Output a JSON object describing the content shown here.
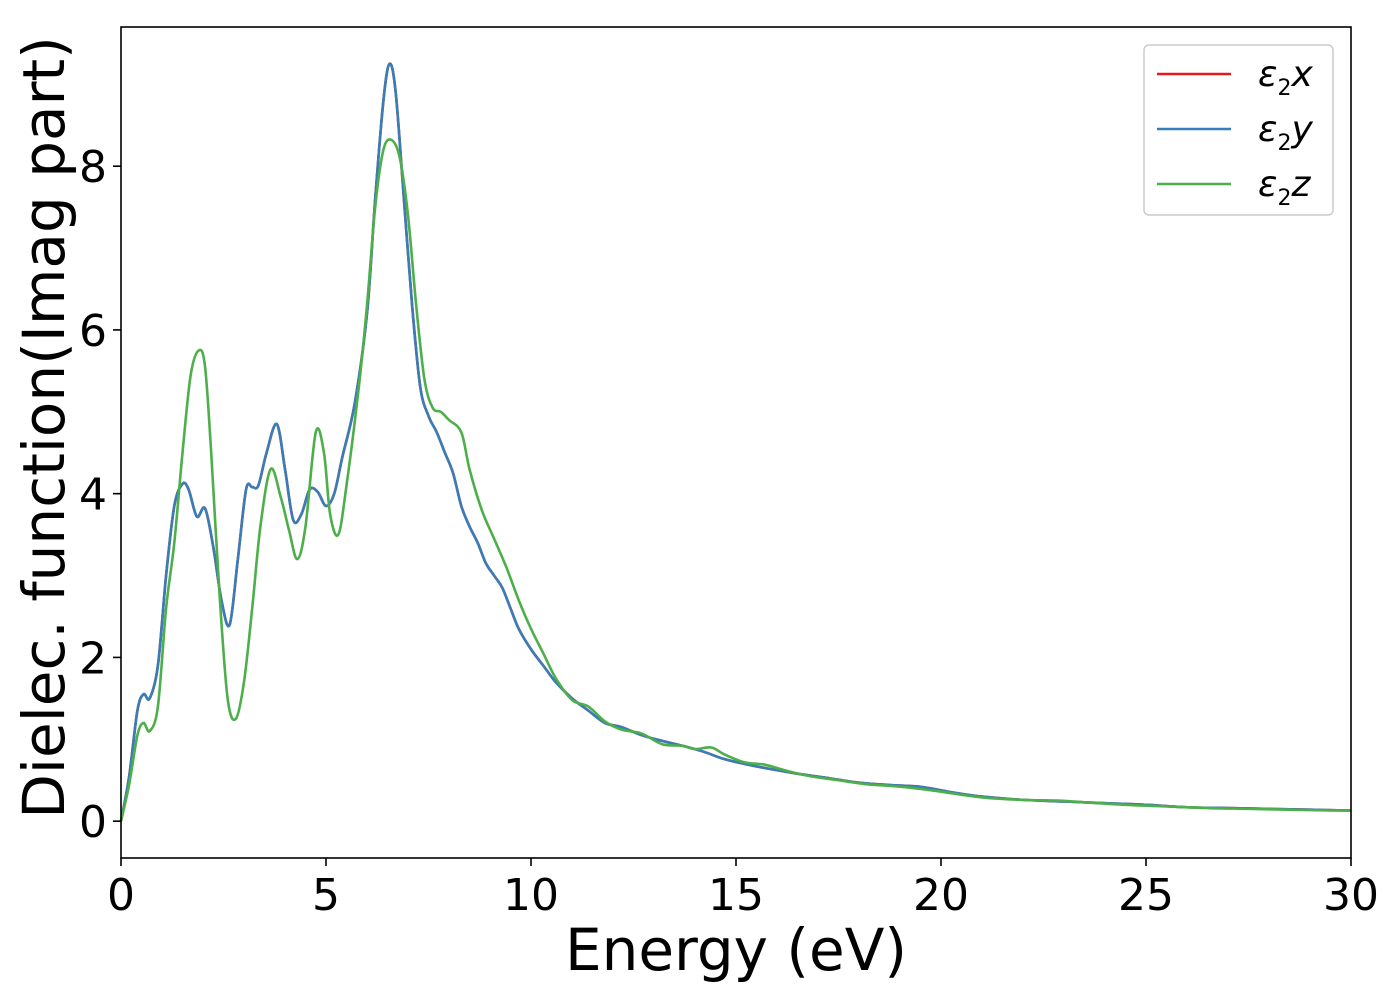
{
  "chart_data": {
    "type": "line",
    "xlabel": "Energy (eV)",
    "ylabel": "Dielec. function(Imag part)",
    "xlim": [
      0,
      30
    ],
    "ylim": [
      -0.45,
      9.7
    ],
    "x_ticks": [
      "0",
      "5",
      "10",
      "15",
      "20",
      "25",
      "30"
    ],
    "y_ticks": [
      "0",
      "2",
      "4",
      "6",
      "8"
    ],
    "grid": false,
    "legend_position": "top-right",
    "series": [
      {
        "name": "ε₂x",
        "legend_base": "ε",
        "legend_sub": "2",
        "legend_var": "x",
        "color": "#e41a1c",
        "x": [
          0,
          0.2,
          0.4,
          0.55,
          0.7,
          0.9,
          1.1,
          1.3,
          1.5,
          1.65,
          1.85,
          2.05,
          2.25,
          2.45,
          2.65,
          2.85,
          3.05,
          3.2,
          3.35,
          3.55,
          3.8,
          4.0,
          4.2,
          4.4,
          4.6,
          4.8,
          5.0,
          5.2,
          5.4,
          5.7,
          6.0,
          6.2,
          6.4,
          6.55,
          6.7,
          6.9,
          7.1,
          7.3,
          7.5,
          7.7,
          7.9,
          8.1,
          8.3,
          8.5,
          8.7,
          8.9,
          9.1,
          9.3,
          9.5,
          9.7,
          10.0,
          10.3,
          10.6,
          11.0,
          11.4,
          11.8,
          12.2,
          12.7,
          13.2,
          13.7,
          14.2,
          14.7,
          15.2,
          15.8,
          16.5,
          17.2,
          18.0,
          18.8,
          19.5,
          20.3,
          21.0,
          22.0,
          23.0,
          24.0,
          25.0,
          26.0,
          27.0,
          28.0,
          29.0,
          30.0
        ],
        "y": [
          0.0,
          0.55,
          1.35,
          1.55,
          1.5,
          1.9,
          3.0,
          3.85,
          4.12,
          4.05,
          3.72,
          3.82,
          3.35,
          2.7,
          2.4,
          3.2,
          4.05,
          4.08,
          4.1,
          4.5,
          4.85,
          4.3,
          3.68,
          3.75,
          4.05,
          4.02,
          3.85,
          4.0,
          4.45,
          5.1,
          6.2,
          7.6,
          8.8,
          9.25,
          8.9,
          7.6,
          6.3,
          5.3,
          4.95,
          4.75,
          4.5,
          4.25,
          3.85,
          3.6,
          3.4,
          3.15,
          3.0,
          2.85,
          2.6,
          2.35,
          2.1,
          1.9,
          1.7,
          1.5,
          1.35,
          1.2,
          1.15,
          1.05,
          0.98,
          0.92,
          0.85,
          0.76,
          0.7,
          0.64,
          0.58,
          0.53,
          0.47,
          0.44,
          0.42,
          0.35,
          0.3,
          0.26,
          0.24,
          0.22,
          0.2,
          0.17,
          0.16,
          0.15,
          0.14,
          0.13
        ]
      },
      {
        "name": "ε₂y",
        "legend_base": "ε",
        "legend_sub": "2",
        "legend_var": "y",
        "color": "#377eb8",
        "x": [
          0,
          0.2,
          0.4,
          0.55,
          0.7,
          0.9,
          1.1,
          1.3,
          1.5,
          1.65,
          1.85,
          2.05,
          2.25,
          2.45,
          2.65,
          2.85,
          3.05,
          3.2,
          3.35,
          3.55,
          3.8,
          4.0,
          4.2,
          4.4,
          4.6,
          4.8,
          5.0,
          5.2,
          5.4,
          5.7,
          6.0,
          6.2,
          6.4,
          6.55,
          6.7,
          6.9,
          7.1,
          7.3,
          7.5,
          7.7,
          7.9,
          8.1,
          8.3,
          8.5,
          8.7,
          8.9,
          9.1,
          9.3,
          9.5,
          9.7,
          10.0,
          10.3,
          10.6,
          11.0,
          11.4,
          11.8,
          12.2,
          12.7,
          13.2,
          13.7,
          14.2,
          14.7,
          15.2,
          15.8,
          16.5,
          17.2,
          18.0,
          18.8,
          19.5,
          20.3,
          21.0,
          22.0,
          23.0,
          24.0,
          25.0,
          26.0,
          27.0,
          28.0,
          29.0,
          30.0
        ],
        "y": [
          0.0,
          0.55,
          1.35,
          1.55,
          1.5,
          1.9,
          3.0,
          3.85,
          4.12,
          4.05,
          3.72,
          3.82,
          3.35,
          2.7,
          2.4,
          3.2,
          4.05,
          4.08,
          4.1,
          4.5,
          4.85,
          4.3,
          3.68,
          3.75,
          4.05,
          4.02,
          3.85,
          4.0,
          4.45,
          5.1,
          6.2,
          7.6,
          8.8,
          9.25,
          8.9,
          7.6,
          6.3,
          5.3,
          4.95,
          4.75,
          4.5,
          4.25,
          3.85,
          3.6,
          3.4,
          3.15,
          3.0,
          2.85,
          2.6,
          2.35,
          2.1,
          1.9,
          1.7,
          1.5,
          1.35,
          1.2,
          1.15,
          1.05,
          0.98,
          0.92,
          0.85,
          0.76,
          0.7,
          0.64,
          0.58,
          0.53,
          0.47,
          0.44,
          0.42,
          0.35,
          0.3,
          0.26,
          0.24,
          0.22,
          0.2,
          0.17,
          0.16,
          0.15,
          0.14,
          0.13
        ]
      },
      {
        "name": "ε₂z",
        "legend_base": "ε",
        "legend_sub": "2",
        "legend_var": "z",
        "color": "#4daf4a",
        "x": [
          0,
          0.2,
          0.4,
          0.55,
          0.7,
          0.9,
          1.1,
          1.3,
          1.5,
          1.7,
          1.9,
          2.05,
          2.2,
          2.4,
          2.6,
          2.8,
          3.0,
          3.2,
          3.4,
          3.65,
          3.9,
          4.1,
          4.3,
          4.5,
          4.75,
          4.95,
          5.1,
          5.3,
          5.5,
          5.8,
          6.0,
          6.2,
          6.4,
          6.6,
          6.8,
          7.0,
          7.2,
          7.4,
          7.6,
          7.8,
          8.0,
          8.3,
          8.5,
          8.8,
          9.1,
          9.4,
          9.7,
          10.0,
          10.3,
          10.6,
          11.0,
          11.4,
          11.8,
          12.2,
          12.7,
          13.2,
          13.7,
          14.0,
          14.4,
          14.7,
          15.2,
          15.7,
          16.2,
          16.8,
          17.5,
          18.2,
          18.8,
          19.4,
          20.0,
          21.0,
          22.0,
          22.9,
          23.5,
          24.5,
          25.5,
          26.5,
          27.5,
          28.5,
          29.5,
          30.0
        ],
        "y": [
          0.0,
          0.45,
          1.05,
          1.2,
          1.1,
          1.4,
          2.6,
          3.4,
          4.5,
          5.45,
          5.75,
          5.55,
          4.5,
          2.8,
          1.5,
          1.25,
          1.7,
          2.6,
          3.6,
          4.3,
          3.95,
          3.55,
          3.2,
          3.6,
          4.75,
          4.5,
          3.75,
          3.5,
          4.1,
          5.3,
          6.3,
          7.5,
          8.2,
          8.32,
          8.1,
          7.4,
          6.3,
          5.4,
          5.05,
          5.0,
          4.9,
          4.75,
          4.3,
          3.8,
          3.45,
          3.1,
          2.7,
          2.35,
          2.05,
          1.75,
          1.48,
          1.4,
          1.22,
          1.12,
          1.07,
          0.94,
          0.92,
          0.88,
          0.9,
          0.82,
          0.72,
          0.69,
          0.62,
          0.55,
          0.5,
          0.45,
          0.43,
          0.4,
          0.36,
          0.29,
          0.26,
          0.25,
          0.23,
          0.2,
          0.18,
          0.16,
          0.15,
          0.14,
          0.13,
          0.13
        ]
      }
    ]
  }
}
